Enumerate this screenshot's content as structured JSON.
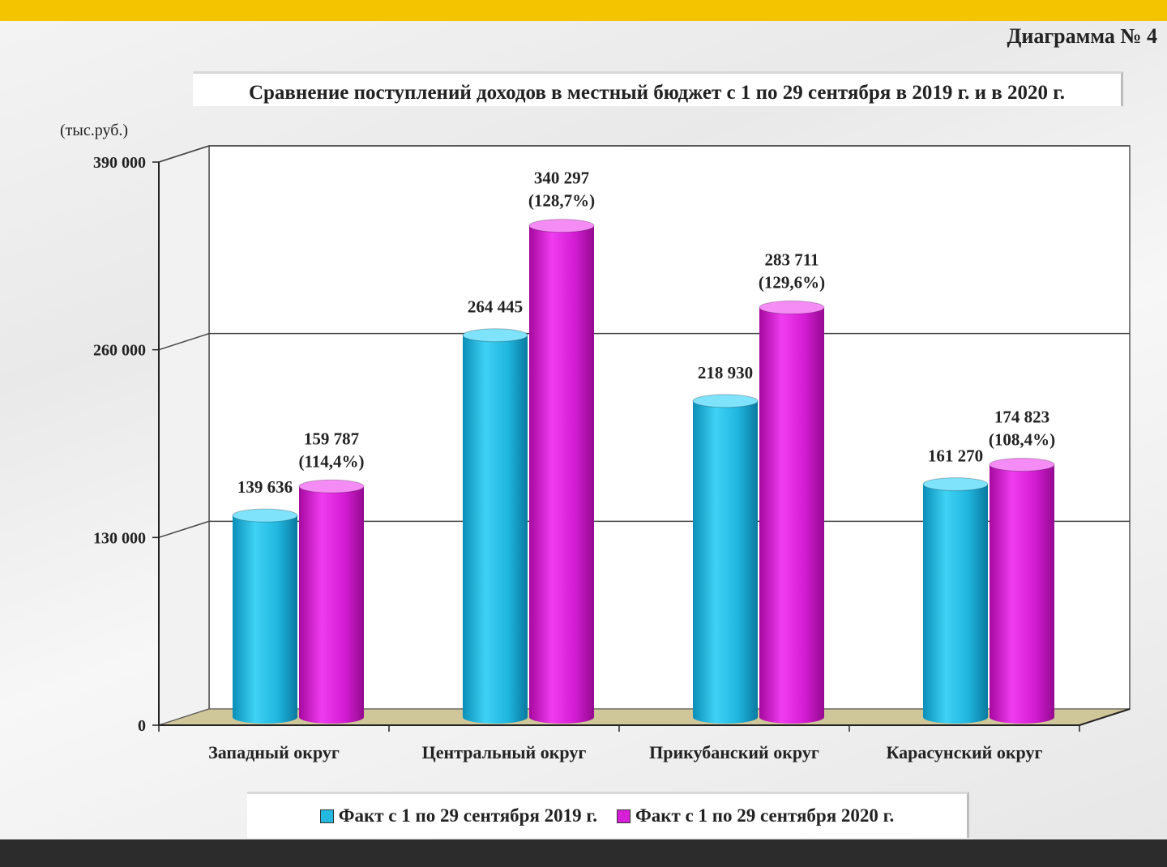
{
  "diagram_number": "Диаграмма № 4",
  "chart_data": {
    "type": "bar",
    "title": "Сравнение поступлений доходов в местный бюджет с 1 по 29 сентября в 2019 г. и в 2020 г.",
    "ylabel": "(тыс.руб.)",
    "ylim": [
      0,
      390000
    ],
    "yticks": [
      0,
      130000,
      260000,
      390000
    ],
    "ytick_labels": [
      "0",
      "130 000",
      "260 000",
      "390 000"
    ],
    "grid": true,
    "legend_position": "bottom",
    "categories": [
      "Западный округ",
      "Центральный округ",
      "Прикубанский округ",
      "Карасунский округ"
    ],
    "series": [
      {
        "name": "Факт с 1 по 29 сентября 2019 г.",
        "color": "#22b8e0",
        "values": [
          139636,
          264445,
          218930,
          161270
        ],
        "labels": [
          "139 636",
          "264 445",
          "218 930",
          "161 270"
        ],
        "pct_labels": [
          "",
          "",
          "",
          ""
        ]
      },
      {
        "name": "Факт с 1 по 29 сентября 2020 г.",
        "color": "#d61fd6",
        "values": [
          159787,
          340297,
          283711,
          174823
        ],
        "labels": [
          "159 787",
          "340 297",
          "283 711",
          "174 823"
        ],
        "pct_labels": [
          "(114,4%)",
          "(128,7%)",
          "(129,6%)",
          "(108,4%)"
        ]
      }
    ]
  }
}
